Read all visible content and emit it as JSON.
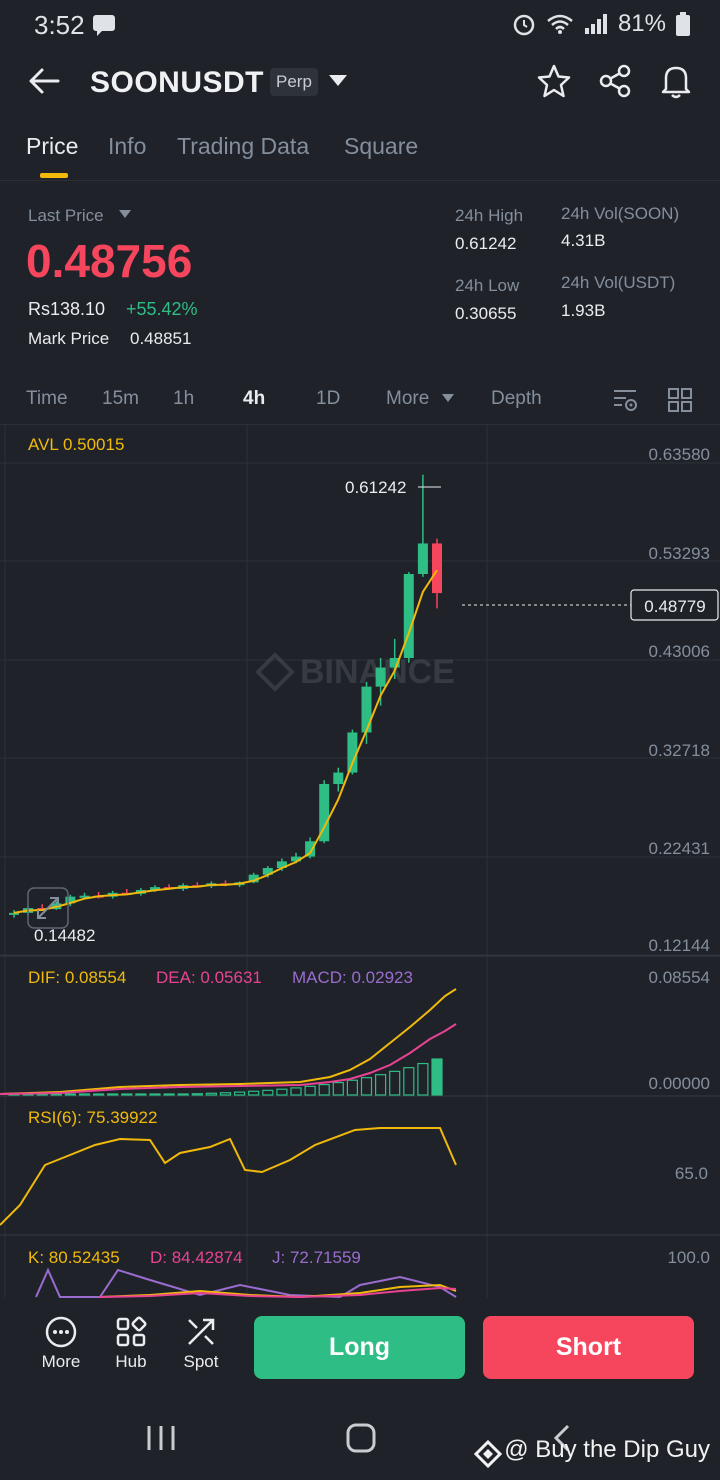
{
  "status": {
    "time": "3:52",
    "battery": "81%"
  },
  "header": {
    "title": "SOONUSDT",
    "badge": "Perp"
  },
  "tabs": [
    "Price",
    "Info",
    "Trading Data",
    "Square"
  ],
  "ticker": {
    "last_price_label": "Last Price",
    "last_price": "0.48756",
    "local_price": "Rs138.10",
    "change": "+55.42%",
    "mark_label": "Mark Price",
    "mark_price": "0.48851",
    "high_label": "24h High",
    "high": "0.61242",
    "low_label": "24h Low",
    "low": "0.30655",
    "vol_base_label": "24h Vol(SOON)",
    "vol_base": "4.31B",
    "vol_quote_label": "24h Vol(USDT)",
    "vol_quote": "1.93B"
  },
  "intervals": [
    "Time",
    "15m",
    "1h",
    "4h",
    "1D",
    "More",
    "Depth"
  ],
  "active_interval": "4h",
  "chart": {
    "avl": "AVL 0.50015",
    "axis": [
      "0.63580",
      "0.53293",
      "0.43006",
      "0.32718",
      "0.22431",
      "0.12144"
    ],
    "high_marker": "0.61242",
    "low_marker": "0.14482",
    "current": "0.48779",
    "watermark": "BINANCE",
    "colors": {
      "up": "#2ebd85",
      "down": "#f6465d",
      "ma": "#f0b90b"
    }
  },
  "chart_data": {
    "type": "candlestick",
    "interval": "4h",
    "ylim": [
      0.12144,
      0.6358
    ],
    "y_ticks": [
      0.6358,
      0.53293,
      0.43006,
      0.32718,
      0.22431,
      0.12144
    ],
    "candles": [
      [
        0.152,
        0.156,
        0.148,
        0.153
      ],
      [
        0.153,
        0.16,
        0.15,
        0.158
      ],
      [
        0.158,
        0.162,
        0.155,
        0.157
      ],
      [
        0.157,
        0.165,
        0.156,
        0.163
      ],
      [
        0.163,
        0.172,
        0.16,
        0.17
      ],
      [
        0.17,
        0.174,
        0.167,
        0.171
      ],
      [
        0.171,
        0.175,
        0.168,
        0.17
      ],
      [
        0.17,
        0.176,
        0.168,
        0.174
      ],
      [
        0.174,
        0.178,
        0.172,
        0.173
      ],
      [
        0.173,
        0.179,
        0.171,
        0.177
      ],
      [
        0.177,
        0.182,
        0.175,
        0.18
      ],
      [
        0.18,
        0.183,
        0.177,
        0.178
      ],
      [
        0.178,
        0.184,
        0.176,
        0.182
      ],
      [
        0.182,
        0.185,
        0.18,
        0.181
      ],
      [
        0.181,
        0.186,
        0.179,
        0.184
      ],
      [
        0.184,
        0.187,
        0.181,
        0.182
      ],
      [
        0.182,
        0.186,
        0.18,
        0.185
      ],
      [
        0.185,
        0.195,
        0.184,
        0.193
      ],
      [
        0.193,
        0.202,
        0.19,
        0.2
      ],
      [
        0.2,
        0.21,
        0.197,
        0.207
      ],
      [
        0.207,
        0.216,
        0.205,
        0.212
      ],
      [
        0.212,
        0.232,
        0.21,
        0.228
      ],
      [
        0.228,
        0.292,
        0.226,
        0.288
      ],
      [
        0.288,
        0.305,
        0.28,
        0.3
      ],
      [
        0.3,
        0.345,
        0.298,
        0.342
      ],
      [
        0.342,
        0.395,
        0.33,
        0.39
      ],
      [
        0.39,
        0.42,
        0.37,
        0.41
      ],
      [
        0.41,
        0.44,
        0.398,
        0.42
      ],
      [
        0.42,
        0.51,
        0.415,
        0.508
      ],
      [
        0.508,
        0.612,
        0.505,
        0.54
      ],
      [
        0.54,
        0.545,
        0.472,
        0.488
      ]
    ],
    "indicators": {
      "DIF": 0.08554,
      "DEA": 0.05631,
      "MACD": 0.02923,
      "RSI6": 75.39922,
      "K": 80.52435,
      "D": 84.42874,
      "J": 72.71559
    },
    "macd_axis": [
      "0.08554",
      "0.00000"
    ],
    "rsi_axis": [
      "65.0"
    ],
    "kdj_axis": [
      "100.0"
    ]
  },
  "indicators_text": {
    "dif": "DIF: 0.08554",
    "dea": "DEA: 0.05631",
    "macd": "MACD: 0.02923",
    "rsi": "RSI(6): 75.39922",
    "k": "K: 80.52435",
    "d": "D: 84.42874",
    "j": "J: 72.71559"
  },
  "bottom": {
    "more": "More",
    "hub": "Hub",
    "spot": "Spot",
    "long": "Long",
    "short": "Short"
  },
  "credit": "@ Buy the Dip Guy"
}
